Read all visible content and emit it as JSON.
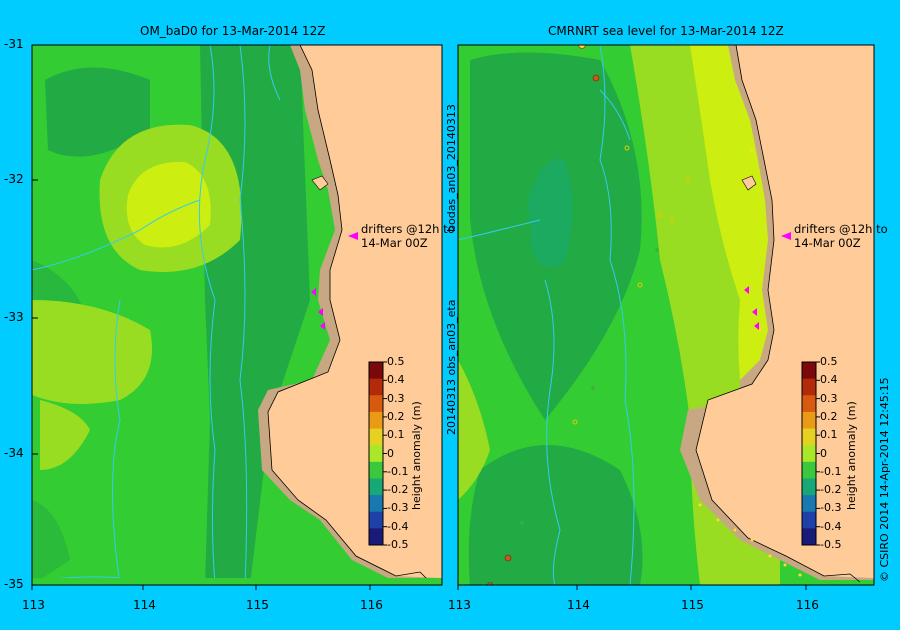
{
  "left_panel": {
    "title": "OM_baD0 for 13-Mar-2014 12Z",
    "drifter_note_line1": "drifters @12h to",
    "drifter_note_line2": "14-Mar 00Z",
    "colorbar_label": "height anomaly (m)"
  },
  "right_panel": {
    "title": "CMRNRT sea level  for 13-Mar-2014 12Z",
    "drifter_note_line1": "drifters @12h to",
    "drifter_note_line2": "14-Mar 00Z",
    "colorbar_label": "height anomaly (m)",
    "side_label_top": "bodas_an03_20140313",
    "side_label_bottom": "20140313 obs_an03_eta"
  },
  "y_ticks": [
    "-31",
    "-32",
    "-33",
    "-34",
    "-35"
  ],
  "x_ticks_left": [
    "113",
    "114",
    "115",
    "116"
  ],
  "x_ticks_right": [
    "113",
    "114",
    "115",
    "116"
  ],
  "colorbar_ticks": [
    "0.5",
    "0.4",
    "0.3",
    "0.2",
    "0.1",
    "0",
    "-0.1",
    "-0.2",
    "-0.3",
    "-0.4",
    "-0.5"
  ],
  "colorbar_colors": [
    "#7a0a0a",
    "#b22a0a",
    "#d85a10",
    "#eb9a18",
    "#e6d020",
    "#a8e828",
    "#3cc83c",
    "#18a878",
    "#1a78b0",
    "#1e40a8",
    "#1a1a78"
  ],
  "credit": "© CSIRO 2014   14-Apr-2014 12:45:15",
  "colors": {
    "background": "#00ccff",
    "land": "#ffcc99",
    "coast_shelf": "#c8a882",
    "field_base": "#33cc33",
    "field_low": "#22aa44",
    "field_high": "#99dd22",
    "field_peak": "#ccee11",
    "drifter": "#ff00ff",
    "contour": "#33ccee"
  }
}
